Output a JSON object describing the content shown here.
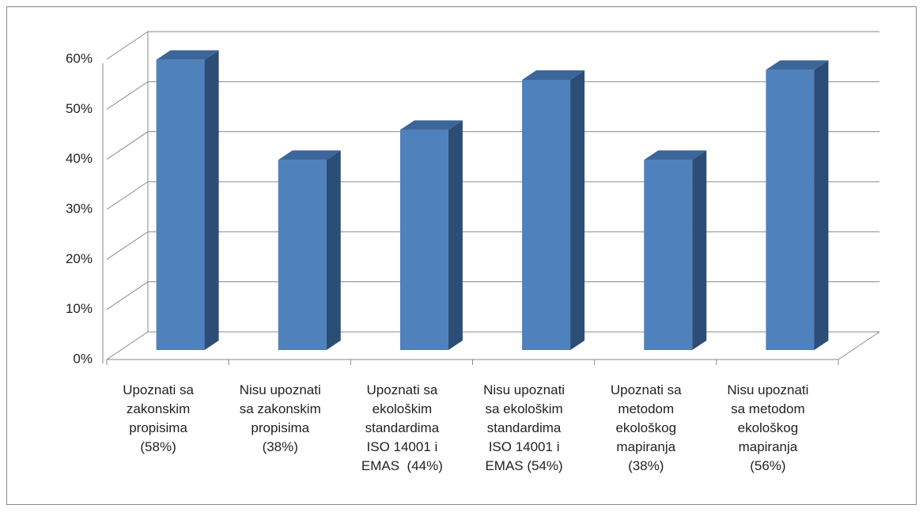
{
  "chart_data": {
    "type": "bar3d",
    "categories": [
      "Upoznati sa\nzakonskim\npropisima\n(58%)",
      "Nisu upoznati\nsa zakonskim\npropisima\n(38%)",
      "Upoznati sa\nekološkim\nstandardima\nISO 14001 i\nEMAS  (44%)",
      "Nisu upoznati\nsa ekološkim\nstandardima\nISO 14001 i\nEMAS (54%)",
      "Upoznati sa\nmetodom\nekološkog\nmapiranja\n(38%)",
      "Nisu upoznati\nsa metodom\nekološkog\nmapiranja\n(56%)"
    ],
    "values": [
      58,
      38,
      44,
      54,
      38,
      56
    ],
    "color": "#4f81bd",
    "ylim": [
      0,
      60
    ],
    "yticks": [
      {
        "value": 0,
        "label": "0%"
      },
      {
        "value": 10,
        "label": "10%"
      },
      {
        "value": 20,
        "label": "20%"
      },
      {
        "value": 30,
        "label": "30%"
      },
      {
        "value": 40,
        "label": "40%"
      },
      {
        "value": 50,
        "label": "50%"
      },
      {
        "value": 60,
        "label": "60%"
      }
    ],
    "grid": true
  }
}
